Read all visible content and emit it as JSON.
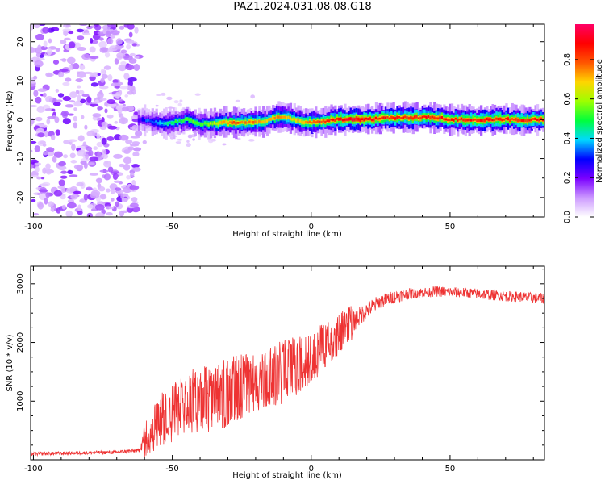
{
  "title": "PAZ1.2024.031.08.08.G18",
  "chart_data": [
    {
      "type": "heatmap",
      "xlabel": "Height of straight line (km)",
      "ylabel": "Frequency (Hz)",
      "xlim": [
        -101,
        84
      ],
      "ylim": [
        -25,
        24.5
      ],
      "xticks": [
        -100,
        -50,
        0,
        50
      ],
      "yticks": [
        -20,
        -10,
        0,
        10,
        20
      ],
      "colorbar": {
        "label": "Normalized spectral amplitude",
        "range": [
          0,
          0.98
        ],
        "ticks": [
          "0.0",
          "0.2",
          "0.4",
          "0.6",
          "0.8"
        ],
        "colors": [
          "#ffffff",
          "#cc99ff",
          "#7a00ff",
          "#0000ff",
          "#00d9ff",
          "#00ff3c",
          "#9dff00",
          "#ffd500",
          "#ff5500",
          "#ff0000",
          "#ff0066"
        ]
      },
      "noise_region_km": [
        -101,
        -62
      ],
      "signal_track": [
        {
          "x": -62,
          "y": 0.0,
          "a": 0.25
        },
        {
          "x": -57,
          "y": -0.5,
          "a": 0.35
        },
        {
          "x": -52,
          "y": -1.0,
          "a": 0.45
        },
        {
          "x": -48,
          "y": -0.5,
          "a": 0.5
        },
        {
          "x": -44,
          "y": 0.0,
          "a": 0.55
        },
        {
          "x": -40,
          "y": -1.0,
          "a": 0.55
        },
        {
          "x": -36,
          "y": -1.2,
          "a": 0.6
        },
        {
          "x": -32,
          "y": -0.8,
          "a": 0.7
        },
        {
          "x": -28,
          "y": -0.8,
          "a": 0.8
        },
        {
          "x": -24,
          "y": -0.6,
          "a": 0.75
        },
        {
          "x": -20,
          "y": -0.7,
          "a": 0.75
        },
        {
          "x": -16,
          "y": -0.2,
          "a": 0.7
        },
        {
          "x": -12,
          "y": 0.8,
          "a": 0.75
        },
        {
          "x": -8,
          "y": 0.6,
          "a": 0.7
        },
        {
          "x": -4,
          "y": -0.5,
          "a": 0.7
        },
        {
          "x": 0,
          "y": -0.6,
          "a": 0.75
        },
        {
          "x": 4,
          "y": -0.5,
          "a": 0.8
        },
        {
          "x": 8,
          "y": 0.0,
          "a": 0.85
        },
        {
          "x": 12,
          "y": 0.0,
          "a": 0.9
        },
        {
          "x": 16,
          "y": 0.0,
          "a": 0.92
        },
        {
          "x": 20,
          "y": 0.0,
          "a": 0.9
        },
        {
          "x": 24,
          "y": 0.2,
          "a": 0.85
        },
        {
          "x": 28,
          "y": 0.4,
          "a": 0.85
        },
        {
          "x": 32,
          "y": 0.5,
          "a": 0.85
        },
        {
          "x": 36,
          "y": 0.5,
          "a": 0.85
        },
        {
          "x": 40,
          "y": 0.6,
          "a": 0.85
        },
        {
          "x": 44,
          "y": 0.6,
          "a": 0.85
        },
        {
          "x": 48,
          "y": 0.3,
          "a": 0.85
        },
        {
          "x": 52,
          "y": 0.0,
          "a": 0.85
        },
        {
          "x": 56,
          "y": 0.0,
          "a": 0.85
        },
        {
          "x": 60,
          "y": 0.0,
          "a": 0.85
        },
        {
          "x": 64,
          "y": 0.0,
          "a": 0.85
        },
        {
          "x": 68,
          "y": 0.0,
          "a": 0.85
        },
        {
          "x": 72,
          "y": 0.0,
          "a": 0.85
        },
        {
          "x": 76,
          "y": 0.0,
          "a": 0.85
        },
        {
          "x": 80,
          "y": 0.0,
          "a": 0.85
        },
        {
          "x": 84,
          "y": 0.0,
          "a": 0.85
        }
      ]
    },
    {
      "type": "line",
      "xlabel": "Height of straight line (km)",
      "ylabel": "SNR (10 * v/v)",
      "xlim": [
        -101,
        84
      ],
      "ylim": [
        0,
        3300
      ],
      "xticks": [
        -100,
        -50,
        0,
        50
      ],
      "yticks": [
        1000,
        2000,
        3000
      ],
      "series": [
        {
          "color": "#ee3333",
          "x": [
            -101,
            -90,
            -80,
            -70,
            -62,
            -60,
            -55,
            -50,
            -45,
            -40,
            -35,
            -30,
            -25,
            -20,
            -15,
            -10,
            -5,
            0,
            5,
            10,
            15,
            20,
            25,
            30,
            35,
            40,
            45,
            50,
            55,
            60,
            65,
            70,
            75,
            80,
            84
          ],
          "y": [
            100,
            110,
            120,
            130,
            160,
            400,
            650,
            800,
            950,
            1050,
            1050,
            1150,
            1250,
            1300,
            1400,
            1500,
            1600,
            1750,
            1950,
            2150,
            2350,
            2550,
            2700,
            2780,
            2830,
            2850,
            2870,
            2860,
            2850,
            2830,
            2810,
            2790,
            2780,
            2760,
            2750
          ],
          "spread": [
            50,
            50,
            50,
            50,
            60,
            350,
            450,
            500,
            500,
            600,
            550,
            600,
            550,
            500,
            500,
            550,
            500,
            450,
            400,
            350,
            300,
            250,
            200,
            180,
            160,
            150,
            150,
            150,
            150,
            150,
            150,
            150,
            150,
            150,
            150
          ]
        }
      ]
    }
  ]
}
